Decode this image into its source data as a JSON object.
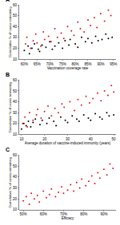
{
  "chart_data": [
    {
      "type": "scatter",
      "annotations": [
        "A"
      ],
      "x_label": "Vaccination coverage rate",
      "y_label": "Cumulative % of cases remaining",
      "xlim": [
        58,
        96
      ],
      "ylim": [
        10,
        60
      ],
      "xticks": [
        {
          "value": 60,
          "label": "60%"
        },
        {
          "value": 65,
          "label": "65%"
        },
        {
          "value": 70,
          "label": "70%"
        },
        {
          "value": 75,
          "label": "75%"
        },
        {
          "value": 80,
          "label": "80%"
        },
        {
          "value": 85,
          "label": "85%"
        },
        {
          "value": 90,
          "label": "90%"
        },
        {
          "value": 95,
          "label": "95%"
        }
      ],
      "yticks": [
        10,
        20,
        30,
        40,
        50,
        60
      ],
      "grid": false,
      "marker": "circle",
      "series": [
        {
          "color": "#000000",
          "x": [
            60,
            61.5,
            62,
            63,
            64,
            65.5,
            66,
            67,
            68.5,
            70,
            71,
            72,
            73.5,
            75,
            76,
            77.5,
            78,
            80,
            81,
            82.5,
            84,
            85,
            86.5,
            88,
            89,
            90.5,
            92,
            93,
            94.5
          ],
          "values": [
            18,
            22,
            15,
            20,
            24,
            19,
            17,
            23,
            21,
            26,
            19,
            22,
            25,
            20,
            27,
            23,
            28,
            24,
            21,
            30,
            26,
            29,
            25,
            31,
            27,
            28,
            33,
            29,
            30
          ]
        },
        {
          "color": "#e8141b",
          "x": [
            60.5,
            61,
            62.5,
            63.5,
            64.5,
            65,
            66.5,
            67.5,
            68,
            69.5,
            70.5,
            72,
            73,
            74.5,
            75.5,
            77,
            78.5,
            79.5,
            81,
            82,
            83.5,
            85,
            86,
            87.5,
            88.5,
            90,
            91.5,
            93,
            94
          ],
          "values": [
            24,
            30,
            20,
            27,
            33,
            25,
            22,
            35,
            28,
            31,
            26,
            38,
            30,
            34,
            29,
            40,
            36,
            32,
            44,
            38,
            35,
            46,
            41,
            48,
            39,
            52,
            45,
            55,
            50
          ]
        }
      ]
    },
    {
      "type": "scatter",
      "annotations": [
        "B"
      ],
      "x_label": "Average duration of vaccine-induced immunity (years)",
      "y_label": "Cumulative % of cases remaining",
      "xlim": [
        9,
        51
      ],
      "ylim": [
        10,
        60
      ],
      "xticks": [
        10,
        20,
        30,
        40,
        50
      ],
      "yticks": [
        10,
        20,
        30,
        40,
        50,
        60
      ],
      "grid": false,
      "marker": "circle",
      "series": [
        {
          "color": "#000000",
          "x": [
            10,
            11,
            12,
            13,
            14,
            15,
            16,
            18,
            19,
            21,
            22,
            24,
            25,
            27,
            29,
            30,
            32,
            34,
            35,
            37,
            39,
            40,
            42,
            44,
            45,
            47,
            48,
            50
          ],
          "values": [
            15,
            20,
            18,
            22,
            17,
            21,
            24,
            19,
            23,
            20,
            25,
            22,
            18,
            26,
            23,
            21,
            27,
            24,
            22,
            28,
            25,
            23,
            29,
            26,
            24,
            30,
            27,
            28
          ]
        },
        {
          "color": "#e8141b",
          "x": [
            10.5,
            11.5,
            12.5,
            13.5,
            15,
            16.5,
            17,
            18.5,
            20,
            21.5,
            23,
            24.5,
            26,
            27.5,
            28.5,
            31,
            33,
            34.5,
            36,
            38,
            39.5,
            41,
            43,
            44.5,
            46,
            47.5,
            49,
            50
          ],
          "values": [
            20,
            26,
            17,
            30,
            23,
            28,
            33,
            25,
            31,
            36,
            27,
            34,
            30,
            38,
            35,
            40,
            32,
            42,
            37,
            45,
            39,
            43,
            48,
            41,
            50,
            46,
            55,
            49
          ]
        }
      ]
    },
    {
      "type": "scatter",
      "annotations": [
        "C"
      ],
      "x_label": "Efficacy",
      "y_label": "Cumulative % of cases remaining",
      "xlim": [
        48,
        96
      ],
      "ylim": [
        10,
        60
      ],
      "xticks": [
        {
          "value": 50,
          "label": "50%"
        },
        {
          "value": 60,
          "label": "60%"
        },
        {
          "value": 70,
          "label": "70%"
        },
        {
          "value": 80,
          "label": "80%"
        },
        {
          "value": 90,
          "label": "90%"
        }
      ],
      "yticks": [
        10,
        20,
        30,
        40,
        50,
        60
      ],
      "grid": false,
      "marker": "circle",
      "series": [
        {
          "color": "#e8141b",
          "x": [
            50,
            51.5,
            53,
            54,
            55.5,
            57,
            58,
            60,
            61.5,
            63,
            64,
            66,
            67.5,
            69,
            70,
            72,
            73.5,
            75,
            76.5,
            78,
            79,
            81,
            82.5,
            84,
            85.5,
            87,
            88,
            90,
            91.5,
            93,
            94.5
          ],
          "values": [
            18,
            22,
            15,
            25,
            20,
            23,
            17,
            27,
            21,
            24,
            29,
            22,
            26,
            31,
            25,
            28,
            33,
            27,
            35,
            30,
            38,
            32,
            36,
            41,
            34,
            44,
            39,
            47,
            42,
            52,
            48
          ]
        }
      ]
    }
  ]
}
